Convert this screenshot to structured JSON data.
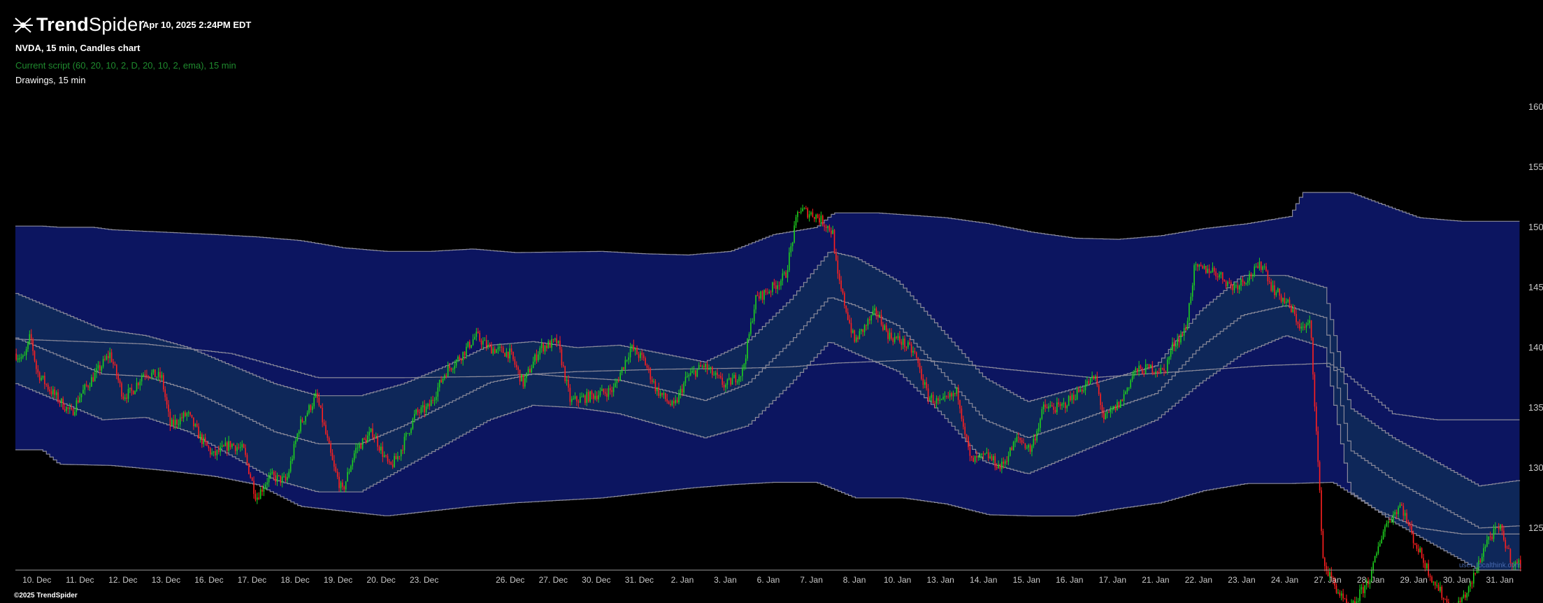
{
  "brand": {
    "name_bold": "Trend",
    "name_light": "Spider",
    "logo_icon": "spider-icon"
  },
  "header": {
    "datetime": "Apr 10, 2025 2:24PM EDT"
  },
  "legend": {
    "main": "NVDA, 15 min, Candles chart",
    "script": "Current script (60, 20, 10, 2, D, 20, 10, 2, ema), 15 min",
    "drawings": "Drawings, 15 min"
  },
  "footer": {
    "copyright": "©2025 TrendSpider",
    "watermark": "user_localthink.com"
  },
  "colors": {
    "background": "#000000",
    "outer_band": "#0c1560",
    "inner_band": "#0e2759",
    "band_line": "#8a8a9a",
    "up_candle": "#1fd11f",
    "down_candle": "#ff2020",
    "axis_text": "#c8c8c8"
  },
  "chart_data": {
    "type": "candlestick",
    "symbol": "NVDA",
    "interval": "15 min",
    "y_axis": {
      "position": "right",
      "ylim": [
        121.5,
        162.5
      ],
      "ticks": [
        160,
        155,
        150,
        145,
        140,
        135,
        130,
        125
      ],
      "tick_labels": [
        "160.00",
        "155.00",
        "150.00",
        "145.00",
        "140.00",
        "135.00",
        "130.00",
        "125.00"
      ]
    },
    "x_axis": {
      "tick_labels": [
        "10. Dec",
        "11. Dec",
        "12. Dec",
        "13. Dec",
        "16. Dec",
        "17. Dec",
        "18. Dec",
        "19. Dec",
        "20. Dec",
        "23. Dec",
        "26. Dec",
        "27. Dec",
        "30. Dec",
        "31. Dec",
        "2. Jan",
        "3. Jan",
        "6. Jan",
        "7. Jan",
        "8. Jan",
        "10. Jan",
        "13. Jan",
        "14. Jan",
        "15. Jan",
        "16. Jan",
        "17. Jan",
        "21. Jan",
        "22. Jan",
        "23. Jan",
        "24. Jan",
        "27. Jan",
        "28. Jan",
        "29. Jan",
        "30. Jan",
        "31. Jan"
      ],
      "tick_positions": [
        0.5,
        1.5,
        2.5,
        3.5,
        4.5,
        5.5,
        6.5,
        7.5,
        8.5,
        9.5,
        11.5,
        12.5,
        13.5,
        14.5,
        15.5,
        16.5,
        17.5,
        18.5,
        19.5,
        20.5,
        21.5,
        22.5,
        23.5,
        24.5,
        25.5,
        26.5,
        27.5,
        28.5,
        29.5,
        30.5,
        31.5,
        32.5,
        33.5,
        34.5
      ]
    },
    "x_range": [
      0,
      35
    ],
    "close_path": [
      [
        0,
        139.5
      ],
      [
        0.2,
        139
      ],
      [
        0.35,
        141
      ],
      [
        0.5,
        138
      ],
      [
        0.8,
        136.5
      ],
      [
        1.3,
        134.5
      ],
      [
        1.5,
        136
      ],
      [
        1.8,
        137.5
      ],
      [
        2.2,
        139.5
      ],
      [
        2.5,
        136
      ],
      [
        2.7,
        136.3
      ],
      [
        3.0,
        138
      ],
      [
        3.4,
        137.5
      ],
      [
        3.6,
        133.5
      ],
      [
        4.0,
        134.5
      ],
      [
        4.3,
        132.5
      ],
      [
        4.6,
        131
      ],
      [
        5.0,
        132
      ],
      [
        5.3,
        131.5
      ],
      [
        5.6,
        127.5
      ],
      [
        5.9,
        129.3
      ],
      [
        6.3,
        128.9
      ],
      [
        6.6,
        133.5
      ],
      [
        7.0,
        136
      ],
      [
        7.4,
        130
      ],
      [
        7.6,
        128
      ],
      [
        7.9,
        131.5
      ],
      [
        8.3,
        133
      ],
      [
        8.7,
        130
      ],
      [
        8.9,
        131
      ],
      [
        9.3,
        134.5
      ],
      [
        9.6,
        135
      ],
      [
        10.0,
        138
      ],
      [
        10.4,
        139.5
      ],
      [
        10.7,
        141
      ],
      [
        11.0,
        140
      ],
      [
        11.5,
        139.5
      ],
      [
        11.8,
        137
      ],
      [
        12.2,
        140
      ],
      [
        12.6,
        140.5
      ],
      [
        12.9,
        135.5
      ],
      [
        13.4,
        136
      ],
      [
        13.9,
        136.5
      ],
      [
        14.3,
        140
      ],
      [
        14.6,
        139
      ],
      [
        14.9,
        136.5
      ],
      [
        15.3,
        135
      ],
      [
        15.6,
        137.5
      ],
      [
        16.0,
        138.5
      ],
      [
        16.5,
        136.8
      ],
      [
        16.9,
        138
      ],
      [
        17.2,
        144
      ],
      [
        17.6,
        145
      ],
      [
        17.9,
        146
      ],
      [
        18.2,
        151.5
      ],
      [
        18.6,
        151
      ],
      [
        18.9,
        150
      ],
      [
        19.0,
        149.5
      ],
      [
        19.1,
        146
      ],
      [
        19.5,
        140.5
      ],
      [
        20.0,
        143
      ],
      [
        20.3,
        141
      ],
      [
        20.6,
        140.5
      ],
      [
        20.9,
        139.5
      ],
      [
        21.2,
        136
      ],
      [
        21.5,
        135.3
      ],
      [
        21.9,
        136.3
      ],
      [
        22.2,
        130.5
      ],
      [
        22.6,
        131
      ],
      [
        22.9,
        130
      ],
      [
        23.3,
        132.5
      ],
      [
        23.6,
        131.5
      ],
      [
        23.9,
        135
      ],
      [
        24.3,
        135
      ],
      [
        24.6,
        136
      ],
      [
        24.9,
        137
      ],
      [
        25.1,
        137.5
      ],
      [
        25.3,
        134
      ],
      [
        25.7,
        135.5
      ],
      [
        26.0,
        138
      ],
      [
        26.4,
        138.3
      ],
      [
        26.7,
        138
      ],
      [
        26.9,
        140.2
      ],
      [
        27.2,
        141.5
      ],
      [
        27.4,
        146.5
      ],
      [
        27.8,
        146.5
      ],
      [
        28.0,
        146
      ],
      [
        28.3,
        145
      ],
      [
        28.7,
        146
      ],
      [
        29.0,
        147
      ],
      [
        29.2,
        145
      ],
      [
        29.6,
        143.5
      ],
      [
        29.9,
        141.5
      ],
      [
        30.1,
        142
      ],
      [
        30.4,
        122
      ],
      [
        31.0,
        118
      ],
      [
        31.5,
        121
      ],
      [
        31.8,
        125
      ],
      [
        32.2,
        127
      ],
      [
        32.5,
        124
      ],
      [
        32.9,
        121
      ],
      [
        33.4,
        118
      ],
      [
        33.8,
        120
      ],
      [
        34.2,
        124
      ],
      [
        34.5,
        125
      ],
      [
        34.8,
        122
      ]
    ],
    "bands": {
      "outer_top": [
        [
          0,
          150.1
        ],
        [
          0.6,
          150.1
        ],
        [
          1.0,
          150.0
        ],
        [
          1.8,
          150.0
        ],
        [
          2.2,
          149.8
        ],
        [
          3.4,
          149.6
        ],
        [
          4.6,
          149.4
        ],
        [
          5.6,
          149.2
        ],
        [
          6.6,
          148.9
        ],
        [
          7.6,
          148.3
        ],
        [
          8.6,
          148.0
        ],
        [
          9.6,
          148.0
        ],
        [
          10.6,
          148.2
        ],
        [
          11.6,
          147.9
        ],
        [
          13.6,
          148.0
        ],
        [
          14.6,
          147.8
        ],
        [
          15.6,
          147.7
        ],
        [
          16.6,
          148.0
        ],
        [
          17.6,
          149.4
        ],
        [
          18.6,
          150.0
        ],
        [
          19.0,
          151.2
        ],
        [
          20.0,
          151.2
        ],
        [
          21.6,
          150.8
        ],
        [
          22.6,
          150.3
        ],
        [
          23.6,
          149.6
        ],
        [
          24.6,
          149.1
        ],
        [
          25.6,
          149.0
        ],
        [
          26.6,
          149.3
        ],
        [
          27.6,
          149.9
        ],
        [
          28.6,
          150.3
        ],
        [
          29.6,
          150.9
        ],
        [
          29.9,
          152.9
        ],
        [
          31.0,
          152.9
        ],
        [
          31.6,
          152.1
        ],
        [
          32.6,
          150.8
        ],
        [
          33.6,
          150.5
        ],
        [
          35,
          150.5
        ]
      ],
      "outer_bottom": [
        [
          0,
          131.5
        ],
        [
          0.6,
          131.5
        ],
        [
          1.0,
          130.3
        ],
        [
          2.2,
          130.2
        ],
        [
          3.4,
          129.8
        ],
        [
          4.6,
          129.3
        ],
        [
          5.6,
          128.6
        ],
        [
          6.6,
          126.8
        ],
        [
          8.6,
          126.0
        ],
        [
          9.6,
          126.4
        ],
        [
          10.6,
          126.8
        ],
        [
          11.6,
          127.1
        ],
        [
          13.6,
          127.5
        ],
        [
          14.6,
          127.9
        ],
        [
          15.6,
          128.3
        ],
        [
          16.6,
          128.6
        ],
        [
          17.6,
          128.8
        ],
        [
          18.6,
          128.8
        ],
        [
          19.5,
          127.5
        ],
        [
          20.6,
          127.5
        ],
        [
          21.6,
          127.0
        ],
        [
          22.6,
          126.1
        ],
        [
          23.6,
          126.0
        ],
        [
          24.6,
          126.0
        ],
        [
          25.6,
          126.6
        ],
        [
          26.6,
          127.1
        ],
        [
          27.6,
          128.1
        ],
        [
          28.6,
          128.7
        ],
        [
          29.6,
          128.7
        ],
        [
          30.6,
          128.8
        ],
        [
          31.6,
          126.5
        ],
        [
          32.6,
          125.0
        ],
        [
          33.6,
          124.5
        ],
        [
          35,
          124.5
        ]
      ],
      "inner_top": [
        [
          0,
          144.5
        ],
        [
          1.0,
          143.0
        ],
        [
          2.0,
          141.5
        ],
        [
          3.0,
          141.0
        ],
        [
          4.0,
          140.0
        ],
        [
          5.0,
          138.5
        ],
        [
          6.0,
          137.0
        ],
        [
          7.0,
          136.0
        ],
        [
          8.0,
          136.0
        ],
        [
          9.0,
          137.0
        ],
        [
          10.0,
          138.5
        ],
        [
          11.0,
          140.2
        ],
        [
          12.0,
          140.5
        ],
        [
          13.0,
          140.0
        ],
        [
          14.0,
          140.2
        ],
        [
          15.0,
          139.5
        ],
        [
          16.0,
          138.8
        ],
        [
          17.0,
          140.5
        ],
        [
          18.0,
          144.0
        ],
        [
          18.9,
          148.0
        ],
        [
          19.5,
          147.5
        ],
        [
          20.5,
          145.5
        ],
        [
          21.5,
          141.5
        ],
        [
          22.5,
          137.5
        ],
        [
          23.5,
          135.5
        ],
        [
          24.5,
          136.5
        ],
        [
          25.5,
          137.5
        ],
        [
          26.5,
          138.5
        ],
        [
          27.5,
          143.0
        ],
        [
          28.5,
          146.0
        ],
        [
          29.5,
          146.0
        ],
        [
          30.4,
          145.0
        ],
        [
          31.0,
          135.0
        ],
        [
          32.0,
          132.5
        ],
        [
          33.0,
          130.5
        ],
        [
          34.0,
          128.5
        ],
        [
          35,
          129.0
        ]
      ],
      "inner_bottom": [
        [
          0,
          137.0
        ],
        [
          1.0,
          135.5
        ],
        [
          2.0,
          134.0
        ],
        [
          3.0,
          134.2
        ],
        [
          4.0,
          133.0
        ],
        [
          5.0,
          131.0
        ],
        [
          6.0,
          129.0
        ],
        [
          7.0,
          128.0
        ],
        [
          8.0,
          128.0
        ],
        [
          9.0,
          130.0
        ],
        [
          10.0,
          132.0
        ],
        [
          11.0,
          134.0
        ],
        [
          12.0,
          135.2
        ],
        [
          13.0,
          135.0
        ],
        [
          14.0,
          134.5
        ],
        [
          15.0,
          133.5
        ],
        [
          16.0,
          132.5
        ],
        [
          17.0,
          133.5
        ],
        [
          18.0,
          137.0
        ],
        [
          18.9,
          140.5
        ],
        [
          19.5,
          139.5
        ],
        [
          20.5,
          138.0
        ],
        [
          21.5,
          134.5
        ],
        [
          22.5,
          130.5
        ],
        [
          23.5,
          129.5
        ],
        [
          24.5,
          131.0
        ],
        [
          25.5,
          132.5
        ],
        [
          26.5,
          134.0
        ],
        [
          27.5,
          137.0
        ],
        [
          28.5,
          139.5
        ],
        [
          29.5,
          141.0
        ],
        [
          30.4,
          140.0
        ],
        [
          31.0,
          128.0
        ],
        [
          32.0,
          125.5
        ],
        [
          33.0,
          123.5
        ],
        [
          34.0,
          121.5
        ],
        [
          35,
          121.5
        ]
      ],
      "mid": [
        [
          0,
          140.8
        ],
        [
          1.0,
          139.3
        ],
        [
          2.0,
          137.8
        ],
        [
          3.0,
          137.6
        ],
        [
          4.0,
          136.5
        ],
        [
          5.0,
          134.8
        ],
        [
          6.0,
          133.0
        ],
        [
          7.0,
          132.0
        ],
        [
          8.0,
          132.0
        ],
        [
          9.0,
          133.5
        ],
        [
          10.0,
          135.3
        ],
        [
          11.0,
          137.1
        ],
        [
          12.0,
          137.8
        ],
        [
          13.0,
          137.5
        ],
        [
          14.0,
          137.3
        ],
        [
          15.0,
          136.5
        ],
        [
          16.0,
          135.6
        ],
        [
          17.0,
          137.0
        ],
        [
          18.0,
          140.5
        ],
        [
          18.9,
          144.2
        ],
        [
          19.5,
          143.5
        ],
        [
          20.5,
          141.8
        ],
        [
          21.5,
          138.0
        ],
        [
          22.5,
          134.0
        ],
        [
          23.5,
          132.5
        ],
        [
          24.5,
          133.7
        ],
        [
          25.5,
          135.0
        ],
        [
          26.5,
          136.2
        ],
        [
          27.5,
          140.0
        ],
        [
          28.5,
          142.7
        ],
        [
          29.5,
          143.5
        ],
        [
          30.4,
          142.5
        ],
        [
          31.0,
          131.5
        ],
        [
          32.0,
          129.0
        ],
        [
          33.0,
          127.0
        ],
        [
          34.0,
          125.0
        ],
        [
          35,
          125.2
        ]
      ],
      "long_mid": [
        [
          0,
          140.7
        ],
        [
          3,
          140.3
        ],
        [
          5,
          139.5
        ],
        [
          7,
          137.5
        ],
        [
          9,
          137.5
        ],
        [
          11,
          137.6
        ],
        [
          13,
          138.0
        ],
        [
          15,
          138.2
        ],
        [
          17,
          138.3
        ],
        [
          18,
          138.4
        ],
        [
          19,
          138.7
        ],
        [
          21,
          139.0
        ],
        [
          23,
          138.2
        ],
        [
          25,
          137.5
        ],
        [
          27,
          138.0
        ],
        [
          29,
          138.5
        ],
        [
          30.5,
          138.7
        ],
        [
          31.0,
          137.5
        ],
        [
          32,
          134.5
        ],
        [
          33,
          134.0
        ],
        [
          35,
          134.0
        ]
      ]
    }
  }
}
